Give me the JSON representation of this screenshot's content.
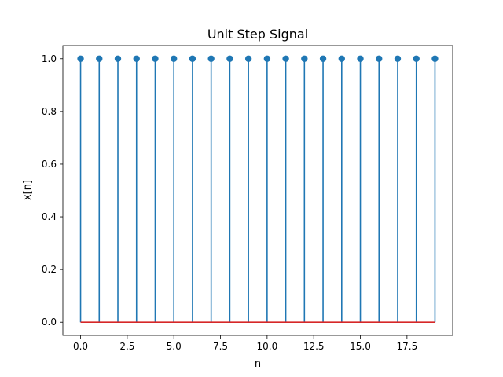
{
  "chart_data": {
    "type": "stem",
    "title": "Unit Step Signal",
    "xlabel": "n",
    "ylabel": "x[n]",
    "x": [
      0,
      1,
      2,
      3,
      4,
      5,
      6,
      7,
      8,
      9,
      10,
      11,
      12,
      13,
      14,
      15,
      16,
      17,
      18,
      19
    ],
    "y": [
      1,
      1,
      1,
      1,
      1,
      1,
      1,
      1,
      1,
      1,
      1,
      1,
      1,
      1,
      1,
      1,
      1,
      1,
      1,
      1
    ],
    "xlim": [
      -0.95,
      19.95
    ],
    "ylim": [
      -0.05,
      1.05
    ],
    "xticks": [
      "0.0",
      "2.5",
      "5.0",
      "7.5",
      "10.0",
      "12.5",
      "15.0",
      "17.5"
    ],
    "yticks": [
      "0.0",
      "0.2",
      "0.4",
      "0.6",
      "0.8",
      "1.0"
    ],
    "baseline": 0,
    "grid": false,
    "colors": {
      "stem": "#1f77b4",
      "marker": "#1f77b4",
      "baseline": "#d62728",
      "axes": "#000000"
    }
  }
}
